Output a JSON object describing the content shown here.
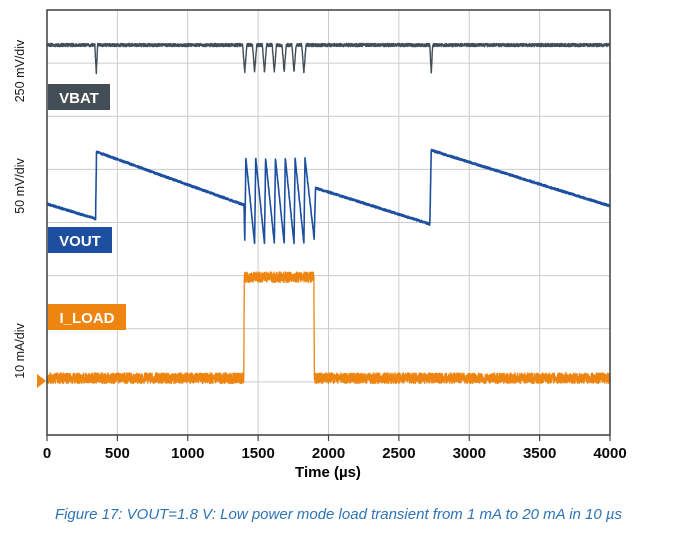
{
  "figure": {
    "caption": "Figure 17: VOUT=1.8 V: Low power mode load transient from 1 mA to 20 mA in 10 µs",
    "caption_color": "#2e74b5"
  },
  "chart_data": {
    "type": "line",
    "title": "",
    "xlabel": "Time (µs)",
    "x_range": [
      0,
      4000
    ],
    "x_ticks": [
      0,
      500,
      1000,
      1500,
      2000,
      2500,
      3000,
      3500,
      4000
    ],
    "y_divisions": 8,
    "y_unit": "graticule divisions from top",
    "grid": true,
    "legend_position": "on-chart channel label boxes",
    "events": {
      "load_pulse_us": [
        1400,
        1900
      ],
      "load_levels_mA": [
        1,
        20
      ],
      "load_step_time_us": 10,
      "vout_refresh_jumps_us": [
        350,
        2730
      ]
    },
    "series": [
      {
        "name": "VBAT",
        "scale_label": "250 mV/div",
        "color": "#424d56",
        "noise_div": 0.03,
        "points_t_div": [
          [
            0,
            0.66
          ],
          [
            340,
            0.66
          ],
          [
            350,
            1.2
          ],
          [
            360,
            0.66
          ],
          [
            1390,
            0.66
          ],
          [
            1405,
            1.17
          ],
          [
            1420,
            0.66
          ],
          [
            1460,
            0.66
          ],
          [
            1475,
            1.17
          ],
          [
            1490,
            0.66
          ],
          [
            1530,
            0.66
          ],
          [
            1545,
            1.17
          ],
          [
            1560,
            0.66
          ],
          [
            1600,
            0.66
          ],
          [
            1615,
            1.17
          ],
          [
            1630,
            0.66
          ],
          [
            1670,
            0.66
          ],
          [
            1685,
            1.17
          ],
          [
            1700,
            0.66
          ],
          [
            1740,
            0.66
          ],
          [
            1755,
            1.17
          ],
          [
            1770,
            0.66
          ],
          [
            1810,
            0.66
          ],
          [
            1825,
            1.17
          ],
          [
            1840,
            0.66
          ],
          [
            2720,
            0.66
          ],
          [
            2730,
            1.2
          ],
          [
            2740,
            0.66
          ],
          [
            4000,
            0.66
          ]
        ]
      },
      {
        "name": "VOUT",
        "scale_label": "50 mV/div",
        "color": "#1d4fa1",
        "noise_div": 0.02,
        "points_t_div": [
          [
            0,
            3.65
          ],
          [
            345,
            3.93
          ],
          [
            352,
            2.67
          ],
          [
            1400,
            3.67
          ],
          [
            1405,
            4.35
          ],
          [
            1413,
            2.79
          ],
          [
            1475,
            4.39
          ],
          [
            1483,
            2.79
          ],
          [
            1545,
            4.39
          ],
          [
            1553,
            2.79
          ],
          [
            1615,
            4.39
          ],
          [
            1623,
            2.79
          ],
          [
            1685,
            4.39
          ],
          [
            1693,
            2.79
          ],
          [
            1755,
            4.39
          ],
          [
            1763,
            2.79
          ],
          [
            1825,
            4.39
          ],
          [
            1833,
            2.79
          ],
          [
            1898,
            4.3
          ],
          [
            1908,
            3.35
          ],
          [
            2720,
            4.03
          ],
          [
            2730,
            2.64
          ],
          [
            4000,
            3.69
          ]
        ]
      },
      {
        "name": "I_LOAD",
        "scale_label": "10 mA/div",
        "color": "#ef8511",
        "noise_div": 0.1,
        "points_t_div": [
          [
            0,
            6.93
          ],
          [
            1398,
            6.93
          ],
          [
            1402,
            5.03
          ],
          [
            1896,
            5.03
          ],
          [
            1900,
            6.93
          ],
          [
            4000,
            6.93
          ]
        ]
      }
    ]
  }
}
